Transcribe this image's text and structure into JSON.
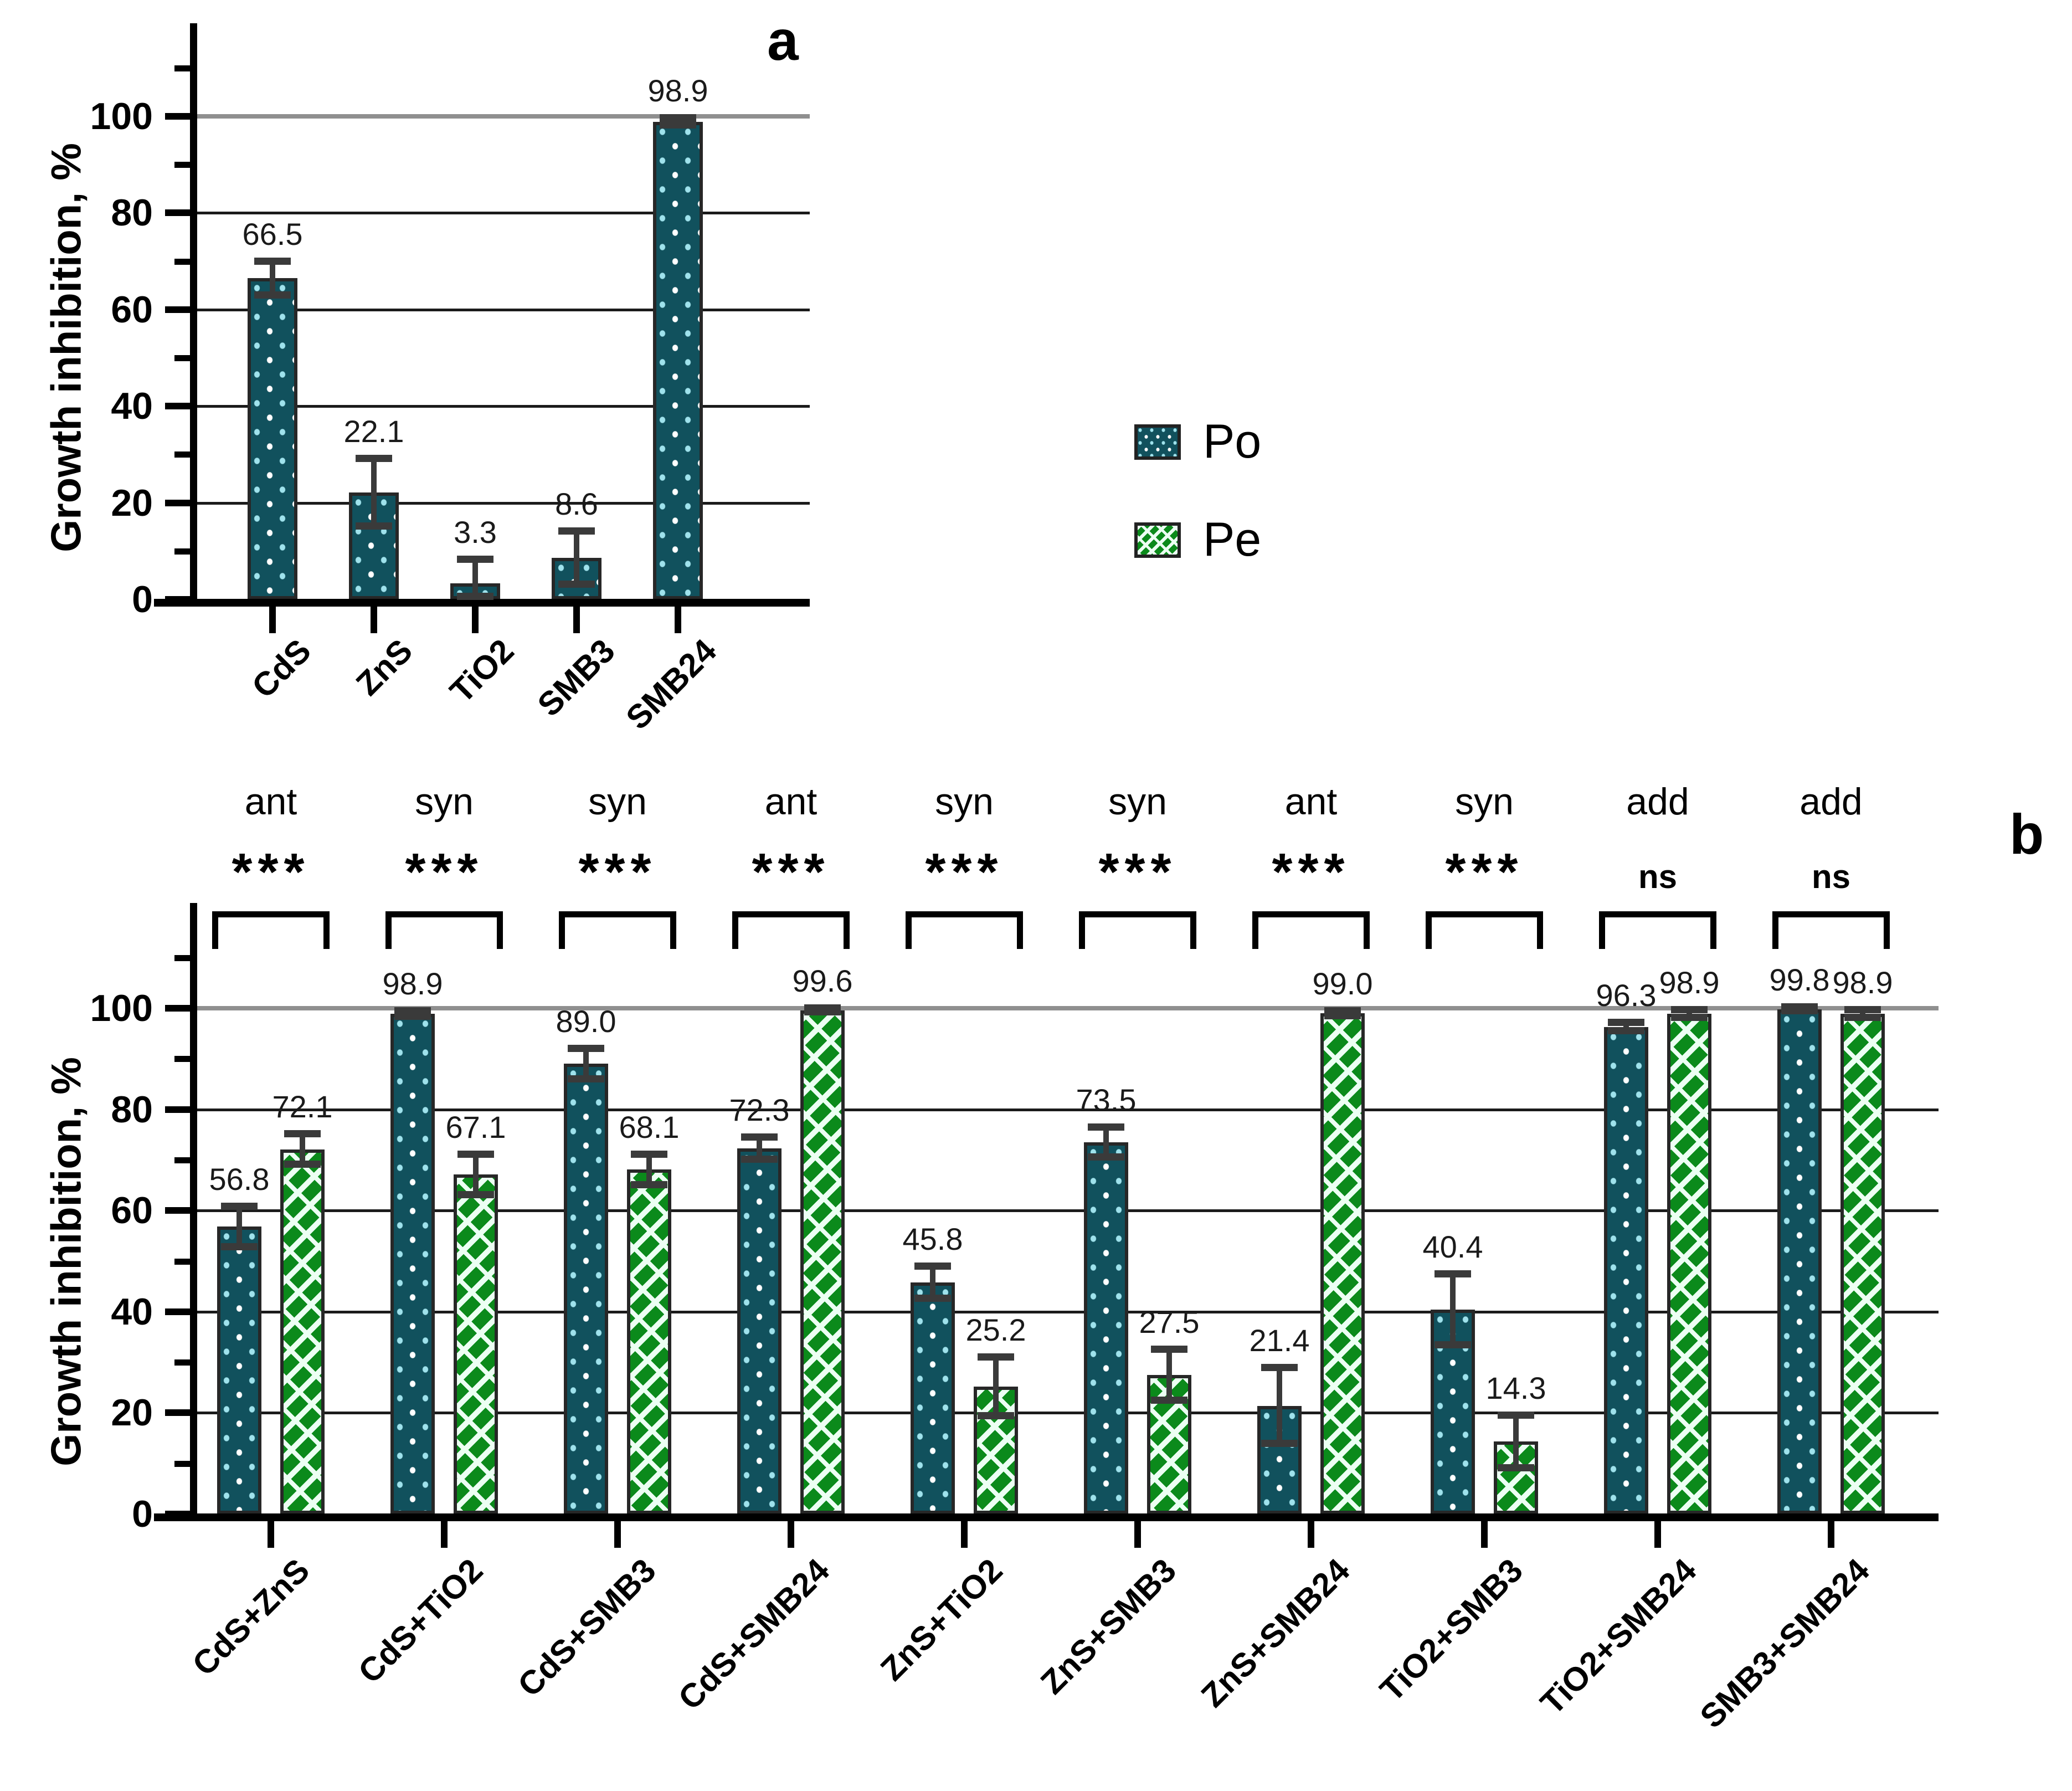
{
  "figure": {
    "panel_a_label": "a",
    "panel_b_label": "b",
    "y_axis_title": "Growth inhibition, %",
    "colors": {
      "po_fill": "#11515d",
      "po_dots": [
        "#ffffff",
        "#9fe2ec"
      ],
      "pe_fill": "#0b8a1b",
      "pe_stripe": "#ecfff3",
      "bar_border": "#272727",
      "error_bar": "#3a3a3a",
      "gridline": "#1b1b1b",
      "gridline_100": "#8f8f8f",
      "axis": "#000000"
    }
  },
  "legend": {
    "items": [
      {
        "label": "Po",
        "swatch": "po"
      },
      {
        "label": "Pe",
        "swatch": "pe"
      }
    ]
  },
  "chart_data": [
    {
      "type": "bar",
      "panel": "a",
      "title": "a",
      "xlabel": "",
      "ylabel": "Growth inhibition, %",
      "ylim": [
        0,
        115
      ],
      "yticks": [
        0,
        20,
        40,
        60,
        80,
        100
      ],
      "minor_yticks": [
        10,
        30,
        50,
        70,
        90,
        110
      ],
      "grid": true,
      "legend_position": "right-of-plot",
      "categories": [
        "CdS",
        "ZnS",
        "TiO2",
        "SMB3",
        "SMB24"
      ],
      "series": [
        {
          "name": "Po",
          "values": [
            66.5,
            22.1,
            3.3,
            8.6,
            98.9
          ],
          "errors": [
            3.5,
            7.0,
            5.0,
            5.5,
            0.7
          ]
        }
      ],
      "value_labels": [
        "66.5",
        "22.1",
        "3.3",
        "8.6",
        "98.9"
      ]
    },
    {
      "type": "bar",
      "panel": "b",
      "title": "b",
      "xlabel": "",
      "ylabel": "Growth inhibition, %",
      "ylim": [
        0,
        115
      ],
      "yticks": [
        0,
        20,
        40,
        60,
        80,
        100
      ],
      "minor_yticks": [
        10,
        30,
        50,
        70,
        90,
        110
      ],
      "grid": true,
      "categories": [
        "CdS+ZnS",
        "CdS+TiO2",
        "CdS+SMB3",
        "CdS+SMB24",
        "ZnS+TiO2",
        "ZnS+SMB3",
        "ZnS+SMB24",
        "TiO2+SMB3",
        "TiO2+SMB24",
        "SMB3+SMB24"
      ],
      "series": [
        {
          "name": "Po",
          "values": [
            56.8,
            98.9,
            89.0,
            72.3,
            45.8,
            73.5,
            21.4,
            40.4,
            96.3,
            99.8
          ],
          "errors": [
            4.0,
            0.5,
            3.0,
            2.2,
            3.2,
            3.0,
            7.5,
            7.0,
            0.8,
            0.4
          ]
        },
        {
          "name": "Pe",
          "values": [
            72.1,
            67.1,
            68.1,
            99.6,
            25.2,
            27.5,
            99.0,
            14.3,
            98.9,
            98.9
          ],
          "errors": [
            3.0,
            4.0,
            3.0,
            0.4,
            5.8,
            5.0,
            0.5,
            5.2,
            0.8,
            0.8
          ]
        }
      ],
      "value_labels_po": [
        "56.8",
        "98.9",
        "89.0",
        "72.3",
        "45.8",
        "73.5",
        "21.4",
        "40.4",
        "96.3",
        "99.8"
      ],
      "value_labels_pe": [
        "72.1",
        "67.1",
        "68.1",
        "99.6",
        "25.2",
        "27.5",
        "99.0",
        "14.3",
        "98.9",
        "98.9"
      ],
      "annotations": [
        {
          "label": "ant",
          "sig": "***"
        },
        {
          "label": "syn",
          "sig": "***"
        },
        {
          "label": "syn",
          "sig": "***"
        },
        {
          "label": "ant",
          "sig": "***"
        },
        {
          "label": "syn",
          "sig": "***"
        },
        {
          "label": "syn",
          "sig": "***"
        },
        {
          "label": "ant",
          "sig": "***"
        },
        {
          "label": "syn",
          "sig": "***"
        },
        {
          "label": "add",
          "sig": "ns"
        },
        {
          "label": "add",
          "sig": "ns"
        }
      ]
    }
  ]
}
